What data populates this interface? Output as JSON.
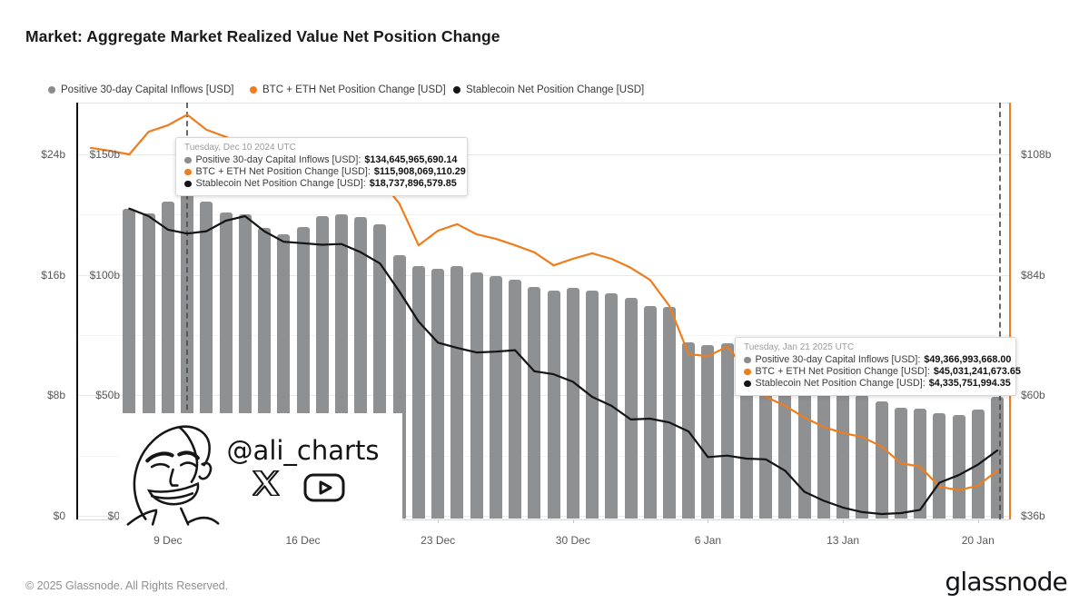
{
  "title": "Market: Aggregate Market Realized Value Net Position Change",
  "legend": [
    {
      "label": "Positive 30-day Capital Inflows [USD]",
      "color": "#8c8c8c"
    },
    {
      "label": "BTC + ETH Net Position Change [USD]",
      "color": "#ee7d1e"
    },
    {
      "label": "Stablecoin Net Position Change [USD]",
      "color": "#141414"
    }
  ],
  "tooltips": [
    {
      "date": "Tuesday, Dec 10 2024 UTC",
      "rows": [
        {
          "label": "Positive 30-day Capital Inflows [USD]:",
          "value": "$134,645,965,690.14",
          "color": "#8c8c8c"
        },
        {
          "label": "BTC + ETH Net Position Change [USD]:",
          "value": "$115,908,069,110.29",
          "color": "#ee7d1e"
        },
        {
          "label": "Stablecoin Net Position Change [USD]:",
          "value": "$18,737,896,579.85",
          "color": "#141414"
        }
      ]
    },
    {
      "date": "Tuesday, Jan 21 2025 UTC",
      "rows": [
        {
          "label": "Positive 30-day Capital Inflows [USD]:",
          "value": "$49,366,993,668.00",
          "color": "#8c8c8c"
        },
        {
          "label": "BTC + ETH Net Position Change [USD]:",
          "value": "$45,031,241,673.65",
          "color": "#ee7d1e"
        },
        {
          "label": "Stablecoin Net Position Change [USD]:",
          "value": "$4,335,751,994.35",
          "color": "#141414"
        }
      ]
    }
  ],
  "watermark": {
    "handle": "@ali_charts"
  },
  "footer": {
    "copyright": "© 2025 Glassnode. All Rights Reserved.",
    "brand": "glassnode"
  },
  "chart_data": {
    "type": "bar+line",
    "title": "Market: Aggregate Market Realized Value Net Position Change",
    "x_ticks": [
      "9 Dec",
      "16 Dec",
      "23 Dec",
      "30 Dec",
      "6 Jan",
      "13 Jan",
      "20 Jan"
    ],
    "axes": {
      "left_outer": {
        "series": "Stablecoin Net Position Change [USD]",
        "ticks": [
          "$24b",
          "$16b",
          "$8b",
          "$0"
        ],
        "range_billions": [
          0,
          24
        ]
      },
      "left_inner": {
        "series": "Positive 30-day Capital Inflows [USD]",
        "ticks": [
          "$150b",
          "$100b",
          "$50b",
          "$0"
        ],
        "range_billions": [
          0,
          150
        ]
      },
      "right": {
        "series": "BTC + ETH Net Position Change [USD]",
        "ticks": [
          "$108b",
          "$84b",
          "$60b",
          "$36b"
        ],
        "range_billions": [
          36,
          108
        ]
      }
    },
    "grid": "horizontal",
    "bar_dates": [
      "2024-12-07",
      "2024-12-08",
      "2024-12-09",
      "2024-12-10",
      "2024-12-11",
      "2024-12-12",
      "2024-12-13",
      "2024-12-14",
      "2024-12-15",
      "2024-12-16",
      "2024-12-17",
      "2024-12-18",
      "2024-12-19",
      "2024-12-20",
      "2024-12-21",
      "2024-12-22",
      "2024-12-23",
      "2024-12-24",
      "2024-12-25",
      "2024-12-26",
      "2024-12-27",
      "2024-12-28",
      "2024-12-29",
      "2024-12-30",
      "2024-12-31",
      "2025-01-01",
      "2025-01-02",
      "2025-01-03",
      "2025-01-04",
      "2025-01-05",
      "2025-01-06",
      "2025-01-07",
      "2025-01-08",
      "2025-01-09",
      "2025-01-10",
      "2025-01-11",
      "2025-01-12",
      "2025-01-13",
      "2025-01-14",
      "2025-01-15",
      "2025-01-16",
      "2025-01-17",
      "2025-01-18",
      "2025-01-19",
      "2025-01-20",
      "2025-01-21"
    ],
    "bars": {
      "name": "Positive 30-day Capital Inflows [USD]",
      "color": "#8f9092",
      "unit": "billion USD",
      "values": [
        127.5,
        125.5,
        130.5,
        134.65,
        130.5,
        126,
        125,
        119.5,
        117,
        120,
        124.5,
        125,
        124,
        121,
        108,
        103.5,
        102.5,
        103.5,
        101,
        99.5,
        98,
        95,
        93.5,
        94.5,
        93.5,
        92.5,
        90.5,
        87,
        86.5,
        72,
        71,
        71.5,
        71,
        68,
        60,
        55,
        53,
        51,
        50,
        47.5,
        45,
        44.5,
        42.5,
        42,
        44,
        49.37
      ]
    },
    "lines": [
      {
        "name": "BTC + ETH Net Position Change [USD]",
        "color": "#ee7d1e",
        "axis": "right",
        "unit": "billion USD",
        "dates": [
          "2024-12-05",
          "2024-12-06",
          "2024-12-07",
          "2024-12-08",
          "2024-12-09",
          "2024-12-10",
          "2024-12-11",
          "2024-12-12",
          "2024-12-13",
          "2024-12-14",
          "2024-12-15",
          "2024-12-16",
          "2024-12-17",
          "2024-12-18",
          "2024-12-19",
          "2024-12-20",
          "2024-12-21",
          "2024-12-22",
          "2024-12-23",
          "2024-12-24",
          "2024-12-25",
          "2024-12-26",
          "2024-12-27",
          "2024-12-28",
          "2024-12-29",
          "2024-12-30",
          "2024-12-31",
          "2025-01-01",
          "2025-01-02",
          "2025-01-03",
          "2025-01-04",
          "2025-01-05",
          "2025-01-06",
          "2025-01-07",
          "2025-01-08",
          "2025-01-09",
          "2025-01-10",
          "2025-01-11",
          "2025-01-12",
          "2025-01-13",
          "2025-01-14",
          "2025-01-15",
          "2025-01-16",
          "2025-01-17",
          "2025-01-18",
          "2025-01-19",
          "2025-01-20",
          "2025-01-21"
        ],
        "values": [
          109.3,
          108.7,
          108,
          112.5,
          113.8,
          115.91,
          112.9,
          111.5,
          110,
          108.5,
          107,
          105.5,
          104,
          102.5,
          101,
          103,
          98.2,
          89.9,
          92.8,
          94.1,
          92.1,
          91.2,
          89.9,
          88.5,
          85.9,
          87.2,
          88.3,
          87.2,
          85.4,
          83,
          77.8,
          68.2,
          67.8,
          69.7,
          65,
          59.7,
          57.9,
          55.6,
          53.7,
          52.5,
          51.7,
          49.8,
          46.5,
          45.8,
          41.8,
          41.1,
          42,
          45.03
        ]
      },
      {
        "name": "Stablecoin Net Position Change [USD]",
        "color": "#141414",
        "axis": "left_outer",
        "unit": "billion USD",
        "dates": [
          "2024-12-07",
          "2024-12-08",
          "2024-12-09",
          "2024-12-10",
          "2024-12-11",
          "2024-12-12",
          "2024-12-13",
          "2024-12-14",
          "2024-12-15",
          "2024-12-16",
          "2024-12-17",
          "2024-12-18",
          "2024-12-19",
          "2024-12-20",
          "2024-12-21",
          "2024-12-22",
          "2024-12-23",
          "2024-12-24",
          "2024-12-25",
          "2024-12-26",
          "2024-12-27",
          "2024-12-28",
          "2024-12-29",
          "2024-12-30",
          "2024-12-31",
          "2025-01-01",
          "2025-01-02",
          "2025-01-03",
          "2025-01-04",
          "2025-01-05",
          "2025-01-06",
          "2025-01-07",
          "2025-01-08",
          "2025-01-09",
          "2025-01-10",
          "2025-01-11",
          "2025-01-12",
          "2025-01-13",
          "2025-01-14",
          "2025-01-15",
          "2025-01-16",
          "2025-01-17",
          "2025-01-18",
          "2025-01-19",
          "2025-01-20",
          "2025-01-21"
        ],
        "values": [
          20.4,
          19.9,
          19.0,
          18.74,
          18.9,
          19.6,
          19.9,
          18.9,
          18.2,
          18.1,
          18.0,
          18.05,
          17.5,
          16.75,
          14.9,
          12.9,
          11.5,
          11.15,
          10.85,
          10.9,
          11.0,
          9.6,
          9.4,
          8.9,
          7.9,
          7.3,
          6.4,
          6.45,
          6.2,
          5.6,
          3.9,
          4.0,
          3.8,
          3.75,
          3.0,
          1.6,
          1.0,
          0.55,
          0.25,
          0.12,
          0.18,
          0.4,
          2.2,
          2.7,
          3.4,
          4.34
        ]
      }
    ],
    "crosshair_dates": [
      "2024-12-10",
      "2025-01-21"
    ]
  }
}
